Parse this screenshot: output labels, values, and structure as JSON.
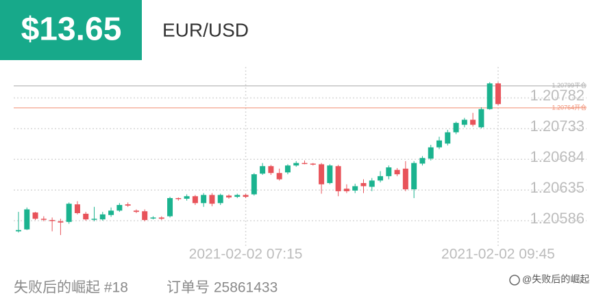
{
  "header": {
    "amount": "$13.65",
    "pair": "EUR/USD"
  },
  "footer": {
    "user": "失败后的崛起 #18",
    "order": "订单号 25861433",
    "watermark": "@失败后的崛起"
  },
  "chart_data": {
    "type": "candlestick",
    "categories": [
      null,
      null,
      null,
      null,
      null,
      null,
      null,
      null,
      null,
      null,
      null,
      null,
      null,
      null,
      null,
      null,
      null,
      null,
      null,
      null,
      null,
      null,
      null,
      null,
      null,
      null,
      null,
      "2021-02-02 07:15",
      null,
      null,
      null,
      null,
      null,
      null,
      null,
      null,
      null,
      null,
      null,
      null,
      null,
      null,
      null,
      null,
      null,
      null,
      null,
      null,
      null,
      null,
      null,
      null,
      null,
      null,
      null,
      null,
      null,
      "2021-02-02 09:45"
    ],
    "open": [
      1.20567,
      1.2057,
      1.20597,
      1.20587,
      1.20585,
      1.20583,
      1.20582,
      1.2061,
      1.20595,
      1.20586,
      1.20586,
      1.20593,
      1.206,
      1.2061,
      1.206,
      1.20599,
      1.20588,
      1.20589,
      1.20591,
      1.2062,
      1.20619,
      1.20623,
      1.20612,
      1.20625,
      1.20612,
      1.20624,
      1.20622,
      1.20625,
      1.20626,
      1.20659,
      1.20671,
      1.2066,
      1.20661,
      1.20672,
      1.20676,
      1.20675,
      1.20674,
      1.20644,
      1.20671,
      1.20635,
      1.20632,
      1.20644,
      1.20638,
      1.20648,
      1.20655,
      1.20665,
      1.20667,
      1.20634,
      1.20675,
      1.20683,
      1.20701,
      1.20707,
      1.20725,
      1.20737,
      1.20745,
      1.20733,
      1.20762,
      1.20803
    ],
    "high": [
      1.20598,
      1.20605,
      1.20598,
      1.20591,
      1.20589,
      1.20587,
      1.20613,
      1.20615,
      1.20598,
      1.20606,
      1.20598,
      1.20605,
      1.20612,
      1.20613,
      1.20602,
      1.20602,
      1.20591,
      1.20591,
      1.20622,
      1.20621,
      1.20626,
      1.20625,
      1.20628,
      1.20628,
      1.20627,
      1.20626,
      1.20627,
      1.20627,
      1.2066,
      1.20676,
      1.20673,
      1.20667,
      1.20674,
      1.20679,
      1.2068,
      1.20676,
      1.20676,
      1.20674,
      1.20673,
      1.20642,
      1.20643,
      1.2065,
      1.20652,
      1.20663,
      1.20672,
      1.20668,
      1.20679,
      1.20679,
      1.20687,
      1.20705,
      1.20718,
      1.20729,
      1.20742,
      1.20748,
      1.20756,
      1.20765,
      1.20805,
      1.20805
    ],
    "low": [
      1.20565,
      1.20569,
      1.20585,
      1.20583,
      1.20567,
      1.20561,
      1.20579,
      1.20594,
      1.20584,
      1.20583,
      1.20584,
      1.2059,
      1.20598,
      1.20606,
      1.20596,
      1.20583,
      1.20586,
      1.20585,
      1.20589,
      1.20616,
      1.20616,
      1.20609,
      1.20606,
      1.20607,
      1.20609,
      1.20619,
      1.2062,
      1.2062,
      1.20624,
      1.20657,
      1.20657,
      1.20648,
      1.20658,
      1.2067,
      1.20674,
      1.20672,
      1.20627,
      1.20642,
      1.20623,
      1.20628,
      1.20628,
      1.20628,
      1.20631,
      1.20645,
      1.2065,
      1.20655,
      1.20631,
      1.2062,
      1.20672,
      1.2068,
      1.20698,
      1.20704,
      1.20722,
      1.20733,
      1.20734,
      1.20731,
      1.20761,
      1.20768
    ],
    "close": [
      1.20569,
      1.20602,
      1.20587,
      1.20586,
      1.20584,
      1.20581,
      1.20611,
      1.20596,
      1.20586,
      1.20587,
      1.20594,
      1.206,
      1.20609,
      1.20608,
      1.20598,
      1.20585,
      1.20589,
      1.20587,
      1.2062,
      1.20619,
      1.20623,
      1.20612,
      1.20625,
      1.20611,
      1.20625,
      1.20621,
      1.20625,
      1.20622,
      1.20658,
      1.20671,
      1.2066,
      1.2065,
      1.20672,
      1.20676,
      1.20675,
      1.20674,
      1.20642,
      1.20672,
      1.20631,
      1.20631,
      1.20639,
      1.20639,
      1.20648,
      1.20655,
      1.20669,
      1.20658,
      1.20634,
      1.20676,
      1.20684,
      1.20701,
      1.20712,
      1.20725,
      1.2074,
      1.20745,
      1.20737,
      1.20762,
      1.20803,
      1.2077
    ],
    "up_color": "#1bb38f",
    "down_color": "#e8535a",
    "ylim": [
      1.2056,
      1.2085
    ],
    "yticks": [
      1.20586,
      1.20635,
      1.20684,
      1.20733,
      1.20782
    ],
    "grid": true,
    "reference_lines": [
      {
        "value": 1.20799,
        "label": "1.20799平仓",
        "color": "#a8a8a8"
      },
      {
        "value": 1.20764,
        "label": "1.20764开仓",
        "color": "#f08a6e"
      }
    ]
  }
}
